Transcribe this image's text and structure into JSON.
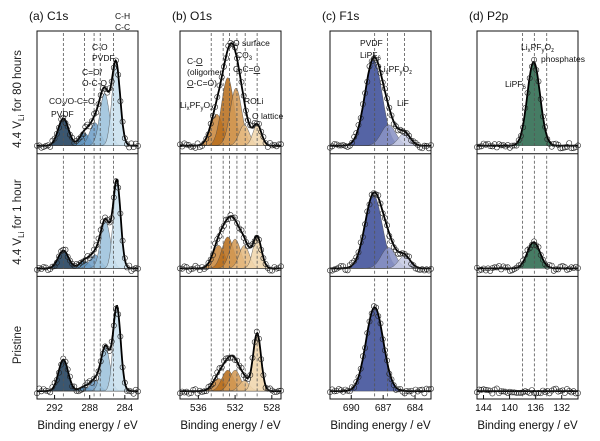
{
  "figure": {
    "xlabel": "Binding energy / eV",
    "row_labels": [
      "4.4 V",
      "Li",
      " for 80 hours",
      "4.4 V",
      "Li",
      " for 1 hour",
      "Pristine"
    ]
  },
  "chart_data": [
    {
      "type": "line",
      "panel_label": "(a) C1s",
      "xlabel": "Binding energy / eV",
      "xlim": [
        294,
        282.5
      ],
      "xticks": [
        292,
        288,
        284
      ],
      "reversed_x": true,
      "fill_colors": [
        "#1f3f5c",
        "#4f86b4",
        "#6e9ec7",
        "#9cc2dc",
        "#c9e0ee"
      ],
      "dashed_lines": [
        291,
        288.6,
        287.5,
        286.8,
        285.3
      ],
      "annotations": [
        "C-H",
        "C-C",
        "C-O",
        "PVDF",
        "C=O/",
        "O-C-O",
        "CO",
        "3",
        "/O-C=O",
        "PVDF"
      ],
      "rows": [
        {
          "condition": "4.4 VLi for 80 hours",
          "components": [
            {
              "center": 291.0,
              "height": 0.26,
              "fwhm": 1.4
            },
            {
              "center": 288.6,
              "height": 0.12,
              "fwhm": 1.3
            },
            {
              "center": 287.4,
              "height": 0.22,
              "fwhm": 1.4
            },
            {
              "center": 286.3,
              "height": 0.5,
              "fwhm": 1.3
            },
            {
              "center": 285.0,
              "height": 0.78,
              "fwhm": 1.1
            }
          ]
        },
        {
          "condition": "4.4 VLi for 1 hour",
          "components": [
            {
              "center": 291.0,
              "height": 0.17,
              "fwhm": 1.4
            },
            {
              "center": 288.6,
              "height": 0.07,
              "fwhm": 1.3
            },
            {
              "center": 287.4,
              "height": 0.13,
              "fwhm": 1.4
            },
            {
              "center": 286.2,
              "height": 0.45,
              "fwhm": 1.3
            },
            {
              "center": 284.9,
              "height": 0.82,
              "fwhm": 1.0
            }
          ]
        },
        {
          "condition": "Pristine",
          "components": [
            {
              "center": 291.0,
              "height": 0.3,
              "fwhm": 1.3
            },
            {
              "center": 288.6,
              "height": 0.04,
              "fwhm": 1.3
            },
            {
              "center": 287.4,
              "height": 0.1,
              "fwhm": 1.3
            },
            {
              "center": 286.2,
              "height": 0.42,
              "fwhm": 1.2
            },
            {
              "center": 284.9,
              "height": 0.8,
              "fwhm": 1.0
            }
          ]
        }
      ]
    },
    {
      "type": "line",
      "panel_label": "(b) O1s",
      "xlabel": "Binding energy / eV",
      "xlim": [
        538,
        527
      ],
      "xticks": [
        536,
        532,
        528
      ],
      "reversed_x": true,
      "fill_colors": [
        "#c9883e",
        "#b86f1f",
        "#d39a55",
        "#e5bb82",
        "#f0d6ad"
      ],
      "dashed_lines": [
        534.6,
        533.3,
        532.6,
        531.8,
        530.9,
        529.6
      ],
      "annotations": [
        "O surface",
        "CO",
        "3",
        "O-C=",
        "O",
        "C-",
        "O",
        "(oligomer,",
        "O",
        "-C=O)",
        "ROLi",
        "O lattice",
        "Li",
        "x",
        "PF",
        "y",
        "O",
        "z"
      ],
      "rows": [
        {
          "condition": "4.4 VLi for 80 hours",
          "components": [
            {
              "center": 534.0,
              "height": 0.3,
              "fwhm": 1.6
            },
            {
              "center": 532.8,
              "height": 0.65,
              "fwhm": 1.6
            },
            {
              "center": 531.9,
              "height": 0.55,
              "fwhm": 1.5
            },
            {
              "center": 531.0,
              "height": 0.2,
              "fwhm": 1.3
            },
            {
              "center": 529.6,
              "height": 0.2,
              "fwhm": 1.1
            }
          ]
        },
        {
          "condition": "4.4 VLi for 1 hour",
          "components": [
            {
              "center": 533.8,
              "height": 0.22,
              "fwhm": 1.5
            },
            {
              "center": 532.8,
              "height": 0.3,
              "fwhm": 1.5
            },
            {
              "center": 532.0,
              "height": 0.28,
              "fwhm": 1.4
            },
            {
              "center": 531.0,
              "height": 0.22,
              "fwhm": 1.3
            },
            {
              "center": 529.6,
              "height": 0.3,
              "fwhm": 1.1
            }
          ]
        },
        {
          "condition": "Pristine",
          "components": [
            {
              "center": 533.8,
              "height": 0.12,
              "fwhm": 1.5
            },
            {
              "center": 532.8,
              "height": 0.2,
              "fwhm": 1.5
            },
            {
              "center": 532.0,
              "height": 0.2,
              "fwhm": 1.4
            },
            {
              "center": 531.0,
              "height": 0.1,
              "fwhm": 1.3
            },
            {
              "center": 529.6,
              "height": 0.55,
              "fwhm": 1.0
            }
          ]
        }
      ]
    },
    {
      "type": "line",
      "panel_label": "(c) F1s",
      "xlabel": "Binding energy / eV",
      "xlim": [
        692,
        682.5
      ],
      "xticks": [
        690,
        687,
        684
      ],
      "reversed_x": true,
      "fill_colors": [
        "#3d4f99",
        "#8a93c5",
        "#c6cbe4"
      ],
      "dashed_lines": [
        687.8,
        686.6,
        685.0
      ],
      "annotations": [
        "PVDF",
        "LiPF",
        "6",
        "Li",
        "x",
        "PF",
        "y",
        "O",
        "z",
        "LiF"
      ],
      "rows": [
        {
          "condition": "4.4 VLi for 80 hours",
          "components": [
            {
              "center": 687.9,
              "height": 0.82,
              "fwhm": 1.9
            },
            {
              "center": 686.5,
              "height": 0.2,
              "fwhm": 1.6
            },
            {
              "center": 685.0,
              "height": 0.12,
              "fwhm": 1.3
            }
          ]
        },
        {
          "condition": "4.4 VLi for 1 hour",
          "components": [
            {
              "center": 687.9,
              "height": 0.7,
              "fwhm": 1.9
            },
            {
              "center": 686.5,
              "height": 0.2,
              "fwhm": 1.6
            },
            {
              "center": 685.0,
              "height": 0.12,
              "fwhm": 1.3
            }
          ]
        },
        {
          "condition": "Pristine",
          "components": [
            {
              "center": 687.8,
              "height": 0.8,
              "fwhm": 1.9
            }
          ]
        }
      ]
    },
    {
      "type": "line",
      "panel_label": "(d) P2p",
      "xlabel": "Binding energy / eV",
      "xlim": [
        145,
        129.5
      ],
      "xticks": [
        144,
        140,
        136,
        132
      ],
      "reversed_x": true,
      "fill_colors": [
        "#2c6a4e"
      ],
      "dashed_lines": [
        138.0,
        136.2,
        134.3
      ],
      "annotations": [
        "Li",
        "x",
        "PF",
        "y",
        "O",
        "z",
        "phosphates",
        "LiPF",
        "6"
      ],
      "rows": [
        {
          "condition": "4.4 VLi for 80 hours",
          "components": [
            {
              "center": 136.3,
              "height": 0.8,
              "fwhm": 2.3
            }
          ]
        },
        {
          "condition": "4.4 VLi for 1 hour",
          "components": [
            {
              "center": 136.3,
              "height": 0.25,
              "fwhm": 2.3
            }
          ]
        },
        {
          "condition": "Pristine",
          "components": []
        }
      ]
    }
  ]
}
